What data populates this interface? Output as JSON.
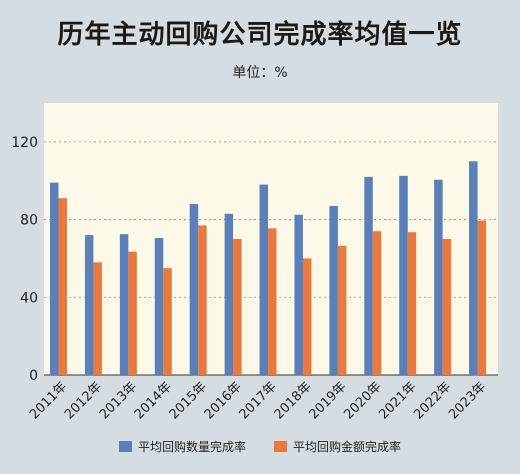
{
  "header": {
    "title": "历年主动回购公司完成率均值一览",
    "unit": "单位：%"
  },
  "colors": {
    "background": "#d5dde3",
    "plot_background": "#fdf9e8",
    "series_qty": "#5b7fb8",
    "series_amt": "#e8793f",
    "grid": "#888888"
  },
  "chart_data": {
    "type": "bar",
    "title": "历年主动回购公司完成率均值一览",
    "subtitle": "单位：%",
    "categories": [
      "2011年",
      "2012年",
      "2013年",
      "2014年",
      "2015年",
      "2016年",
      "2017年",
      "2018年",
      "2019年",
      "2020年",
      "2021年",
      "2022年",
      "2023年"
    ],
    "series": [
      {
        "name": "平均回购数量完成率",
        "values": [
          99,
          72,
          72.5,
          70.5,
          88,
          83,
          98,
          82.5,
          87,
          102,
          102.5,
          100.5,
          110
        ]
      },
      {
        "name": "平均回购金额完成率",
        "values": [
          91,
          58,
          63.5,
          55,
          77,
          70,
          75.5,
          60,
          66.5,
          74,
          73.5,
          70,
          79.5
        ]
      }
    ],
    "ylim": [
      0,
      140
    ],
    "yticks": [
      0,
      40,
      80,
      120
    ],
    "grid": true,
    "legend_position": "bottom"
  }
}
